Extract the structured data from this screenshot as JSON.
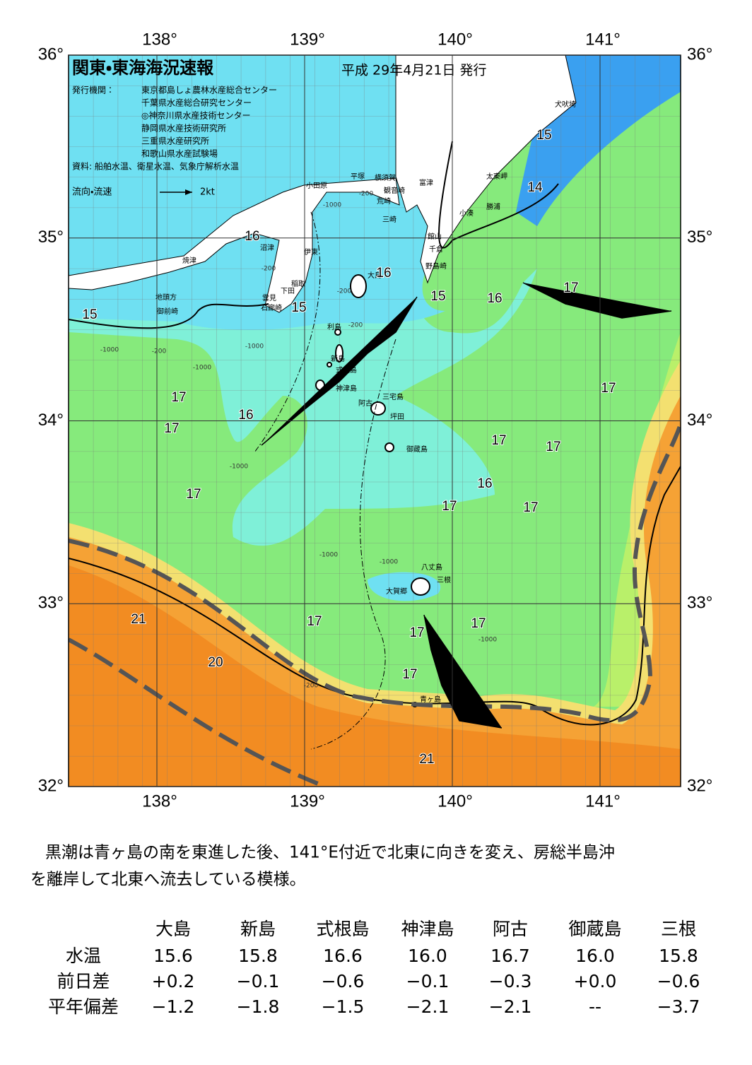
{
  "header": {
    "title": "関東・東海海況速報",
    "date": "平成 29年4月21日 発行",
    "publisher_label": "発行機関：",
    "publishers": [
      "東京都島しょ農林水産総合センター",
      "千葉県水産総合研究センター",
      "◎神奈川県水産技術センター",
      "静岡県水産技術研究所",
      "三重県水産研究所",
      "和歌山県水産試験場"
    ],
    "source": "資料: 船舶水温、衛星水温、気象庁解析水温",
    "legend_label": "流向・流速",
    "legend_scale": "2kt"
  },
  "map": {
    "lon_ticks": [
      {
        "value": 138,
        "label": "138°"
      },
      {
        "value": 139,
        "label": "139°"
      },
      {
        "value": 140,
        "label": "140°"
      },
      {
        "value": 141,
        "label": "141°"
      }
    ],
    "lat_ticks": [
      {
        "value": 36,
        "label": "36°"
      },
      {
        "value": 35,
        "label": "35°"
      },
      {
        "value": 34,
        "label": "34°"
      },
      {
        "value": 33,
        "label": "33°"
      },
      {
        "value": 32,
        "label": "32°"
      }
    ],
    "places": [
      "犬吠埼",
      "太東岬",
      "勝浦",
      "小湊",
      "富津",
      "観音崎",
      "横須賀",
      "平塚",
      "小田原",
      "荒崎",
      "三崎",
      "館山",
      "千倉",
      "野島崎",
      "大島",
      "沼津",
      "伊東",
      "焼津",
      "稲取",
      "下田",
      "雲見",
      "石廊崎",
      "地頭方",
      "御前崎",
      "利島",
      "新島",
      "式根島",
      "神津島",
      "三宅島",
      "阿古",
      "坪田",
      "御蔵島",
      "八丈島",
      "三根",
      "大賀郷",
      "青ヶ島"
    ],
    "isotherm_labels": [
      "15",
      "15",
      "15",
      "15",
      "14",
      "16",
      "16",
      "16",
      "16",
      "16",
      "17",
      "17",
      "17",
      "17",
      "17",
      "17",
      "17",
      "17",
      "17",
      "17",
      "17",
      "17",
      "17",
      "21",
      "21",
      "20"
    ],
    "depth_labels": [
      "-200",
      "-1000",
      "-200",
      "-200",
      "-200",
      "-1000",
      "-200",
      "-1000",
      "-1000",
      "-1000",
      "-1000",
      "-1000",
      "-1000",
      "-200"
    ]
  },
  "comment": [
    "黒潮は青ヶ島の南を東進した後、141°E付近で北東に向きを変え、房総半島沖",
    "を離岸して北東へ流去している模様。"
  ],
  "table": {
    "columns": [
      "大島",
      "新島",
      "式根島",
      "神津島",
      "阿古",
      "御蔵島",
      "三根"
    ],
    "rows": [
      {
        "label": "水温",
        "values": [
          "15.6",
          "15.8",
          "16.6",
          "16.0",
          "16.7",
          "16.0",
          "15.8"
        ]
      },
      {
        "label": "前日差",
        "values": [
          "+0.2",
          "−0.1",
          "−0.6",
          "−0.1",
          "−0.3",
          "+0.0",
          "−0.6"
        ]
      },
      {
        "label": "平年偏差",
        "values": [
          "−1.2",
          "−1.8",
          "−1.5",
          "−2.1",
          "−2.1",
          "--",
          "−3.7"
        ]
      }
    ]
  }
}
